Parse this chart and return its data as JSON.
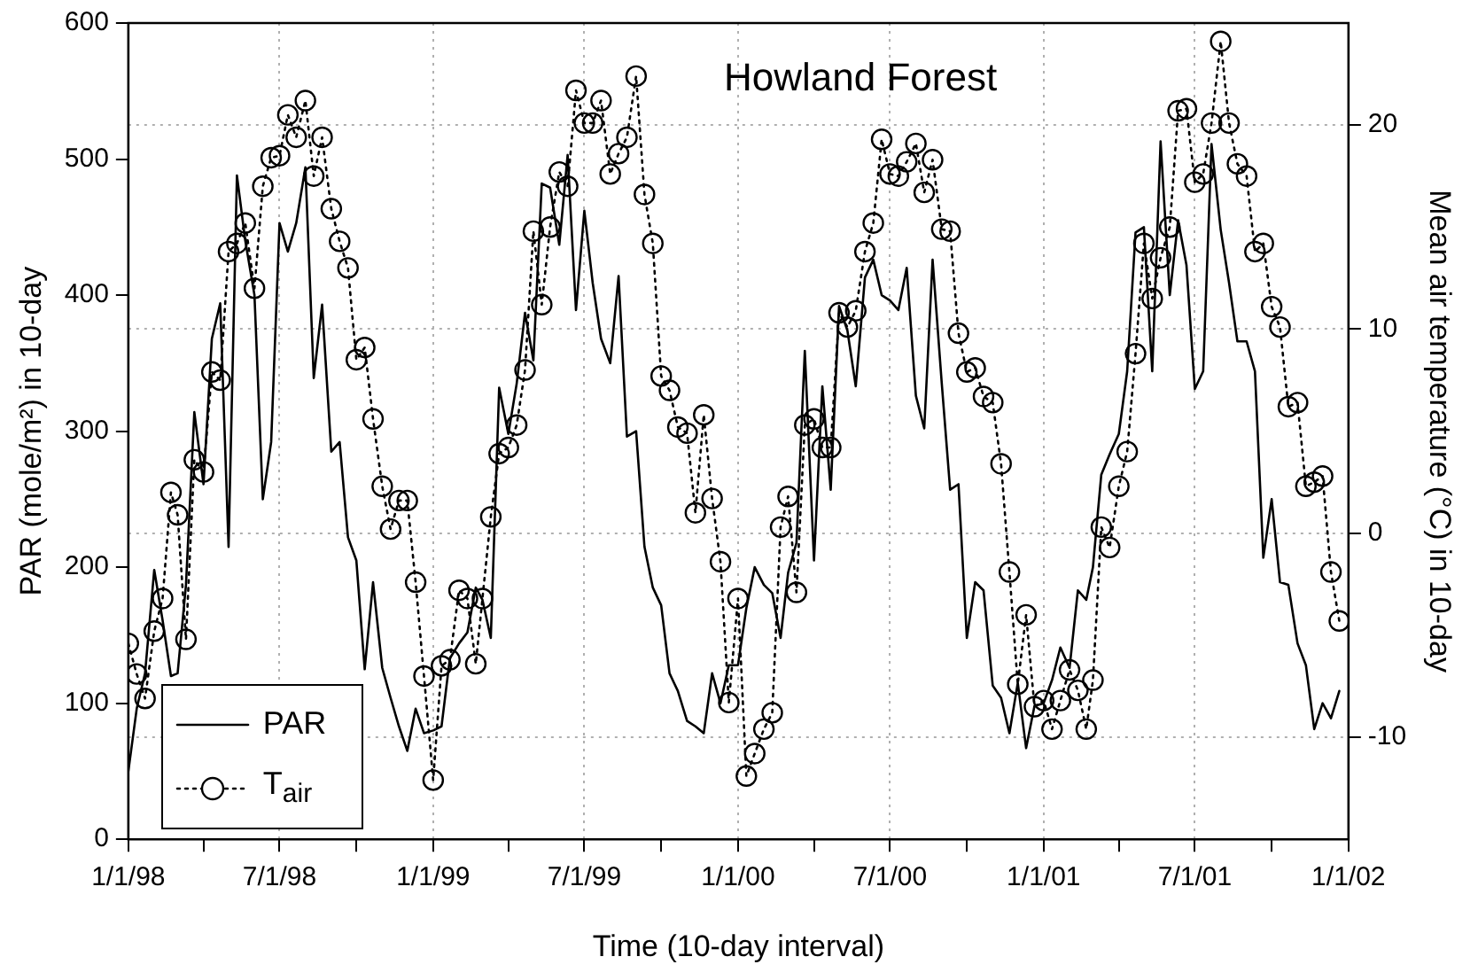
{
  "chart_data": {
    "type": "line",
    "title": "Howland Forest",
    "xlabel": "Time (10-day interval)",
    "ylabel": "PAR (mole/m²) in 10-day",
    "y2label": "Mean air temperature (°C) in 10-day",
    "x": [
      "1998-01-01",
      "1998-01-11",
      "1998-01-21",
      "1998-02-01",
      "1998-02-11",
      "1998-02-21",
      "1998-03-01",
      "1998-03-11",
      "1998-03-21",
      "1998-04-01",
      "1998-04-11",
      "1998-04-21",
      "1998-05-01",
      "1998-05-11",
      "1998-05-21",
      "1998-06-01",
      "1998-06-11",
      "1998-06-21",
      "1998-07-01",
      "1998-07-11",
      "1998-07-21",
      "1998-08-01",
      "1998-08-11",
      "1998-08-21",
      "1998-09-01",
      "1998-09-11",
      "1998-09-21",
      "1998-10-01",
      "1998-10-11",
      "1998-10-21",
      "1998-11-01",
      "1998-11-11",
      "1998-11-21",
      "1998-12-01",
      "1998-12-11",
      "1998-12-21",
      "1999-01-01",
      "1999-01-11",
      "1999-01-21",
      "1999-02-01",
      "1999-02-11",
      "1999-02-21",
      "1999-03-01",
      "1999-03-11",
      "1999-03-21",
      "1999-04-01",
      "1999-04-11",
      "1999-04-21",
      "1999-05-01",
      "1999-05-11",
      "1999-05-21",
      "1999-06-01",
      "1999-06-11",
      "1999-06-21",
      "1999-07-01",
      "1999-07-11",
      "1999-07-21",
      "1999-08-01",
      "1999-08-11",
      "1999-08-21",
      "1999-09-01",
      "1999-09-11",
      "1999-09-21",
      "1999-10-01",
      "1999-10-11",
      "1999-10-21",
      "1999-11-01",
      "1999-11-11",
      "1999-11-21",
      "1999-12-01",
      "1999-12-11",
      "1999-12-21",
      "2000-01-01",
      "2000-01-11",
      "2000-01-21",
      "2000-02-01",
      "2000-02-11",
      "2000-02-21",
      "2000-03-01",
      "2000-03-11",
      "2000-03-21",
      "2000-04-01",
      "2000-04-11",
      "2000-04-21",
      "2000-05-01",
      "2000-05-11",
      "2000-05-21",
      "2000-06-01",
      "2000-06-11",
      "2000-06-21",
      "2000-07-01",
      "2000-07-11",
      "2000-07-21",
      "2000-08-01",
      "2000-08-11",
      "2000-08-21",
      "2000-09-01",
      "2000-09-11",
      "2000-09-21",
      "2000-10-01",
      "2000-10-11",
      "2000-10-21",
      "2000-11-01",
      "2000-11-11",
      "2000-11-21",
      "2000-12-01",
      "2000-12-11",
      "2000-12-21",
      "2001-01-01",
      "2001-01-11",
      "2001-01-21",
      "2001-02-01",
      "2001-02-11",
      "2001-02-21",
      "2001-03-01",
      "2001-03-11",
      "2001-03-21",
      "2001-04-01",
      "2001-04-11",
      "2001-04-21",
      "2001-05-01",
      "2001-05-11",
      "2001-05-21",
      "2001-06-01",
      "2001-06-11",
      "2001-06-21",
      "2001-07-01",
      "2001-07-11",
      "2001-07-21",
      "2001-08-01",
      "2001-08-11",
      "2001-08-21",
      "2001-09-01",
      "2001-09-11",
      "2001-09-21",
      "2001-10-01",
      "2001-10-11",
      "2001-10-21",
      "2001-11-01",
      "2001-11-11",
      "2001-11-21",
      "2001-12-01",
      "2001-12-11",
      "2001-12-21"
    ],
    "series": [
      {
        "name": "PAR",
        "color": "#000000",
        "marker": "none",
        "line_style": "solid",
        "values": [
          50,
          96,
          122,
          198,
          161,
          120,
          122,
          187,
          314,
          261,
          368,
          394,
          215,
          488,
          440,
          400,
          250,
          292,
          453,
          432,
          453,
          494,
          339,
          393,
          285,
          292,
          222,
          205,
          125,
          189,
          126,
          104,
          83,
          65,
          96,
          78,
          80,
          83,
          133,
          144,
          152,
          185,
          176,
          148,
          332,
          298,
          335,
          387,
          352,
          482,
          479,
          437,
          503,
          389,
          462,
          409,
          368,
          350,
          414,
          296,
          300,
          215,
          185,
          172,
          122,
          109,
          87,
          83,
          78,
          122,
          100,
          128,
          128,
          170,
          200,
          187,
          181,
          148,
          196,
          218,
          359,
          205,
          333,
          257,
          392,
          374,
          333,
          413,
          426,
          400,
          396,
          389,
          420,
          326,
          302,
          426,
          335,
          257,
          261,
          148,
          189,
          183,
          113,
          104,
          78,
          115,
          67,
          98,
          100,
          117,
          141,
          126,
          183,
          176,
          200,
          268,
          283,
          298,
          344,
          446,
          450,
          344,
          513,
          400,
          455,
          422,
          331,
          344,
          511,
          448,
          409,
          366,
          366,
          344,
          207,
          250,
          189,
          187,
          144,
          128,
          81,
          100,
          89,
          109
        ]
      },
      {
        "name": "T$_{air}$",
        "color": "#000000",
        "axis": "y2",
        "marker": "circle",
        "line_style": "dotted",
        "values": [
          -5.4,
          -6.9,
          -8.1,
          -4.8,
          -3.2,
          2.0,
          0.9,
          -5.2,
          3.6,
          3.0,
          7.9,
          7.5,
          13.8,
          14.2,
          15.2,
          12.0,
          17.0,
          18.4,
          18.5,
          20.5,
          19.4,
          21.2,
          17.5,
          19.4,
          15.9,
          14.3,
          13.0,
          8.5,
          9.1,
          5.6,
          2.3,
          0.2,
          1.6,
          1.6,
          -2.4,
          -7.0,
          -12.1,
          -6.5,
          -6.2,
          -2.8,
          -3.2,
          -6.4,
          -3.2,
          0.8,
          3.9,
          4.2,
          5.3,
          8.0,
          14.8,
          11.2,
          15.0,
          17.7,
          17.0,
          21.7,
          20.1,
          20.1,
          21.2,
          17.6,
          18.6,
          19.4,
          22.4,
          16.6,
          14.2,
          7.7,
          7.0,
          5.2,
          4.9,
          1.0,
          5.8,
          1.7,
          -1.4,
          -8.3,
          -3.2,
          -11.9,
          -10.8,
          -9.6,
          -8.8,
          0.3,
          1.8,
          -2.9,
          5.3,
          5.6,
          4.2,
          4.2,
          10.8,
          10.1,
          10.9,
          13.8,
          15.2,
          19.3,
          17.6,
          17.5,
          18.2,
          19.1,
          16.7,
          18.3,
          14.9,
          14.8,
          9.8,
          7.9,
          8.1,
          6.7,
          6.4,
          3.4,
          -1.9,
          -7.4,
          -4.0,
          -8.5,
          -8.2,
          -9.6,
          -8.2,
          -6.7,
          -7.7,
          -9.6,
          -7.2,
          0.3,
          -0.7,
          2.3,
          4.0,
          8.8,
          14.2,
          11.5,
          13.5,
          15.0,
          20.7,
          20.8,
          17.2,
          17.6,
          20.1,
          24.1,
          20.1,
          18.1,
          17.5,
          13.8,
          14.2,
          11.1,
          10.1,
          6.2,
          6.4,
          2.3,
          2.5,
          2.8,
          -1.9,
          -4.3
        ]
      }
    ],
    "xlim": [
      "1998-01-01",
      "2002-01-01"
    ],
    "xticks": [
      {
        "value": "1998-01-01",
        "label": "1/1/98"
      },
      {
        "value": "1998-04-01",
        "label": null
      },
      {
        "value": "1998-07-01",
        "label": "7/1/98"
      },
      {
        "value": "1998-10-01",
        "label": null
      },
      {
        "value": "1999-01-01",
        "label": "1/1/99"
      },
      {
        "value": "1999-04-01",
        "label": null
      },
      {
        "value": "1999-07-01",
        "label": "7/1/99"
      },
      {
        "value": "1999-10-01",
        "label": null
      },
      {
        "value": "2000-01-01",
        "label": "1/1/00"
      },
      {
        "value": "2000-04-01",
        "label": null
      },
      {
        "value": "2000-07-01",
        "label": "7/1/00"
      },
      {
        "value": "2000-10-01",
        "label": null
      },
      {
        "value": "2001-01-01",
        "label": "1/1/01"
      },
      {
        "value": "2001-04-01",
        "label": null
      },
      {
        "value": "2001-07-01",
        "label": "7/1/01"
      },
      {
        "value": "2001-10-01",
        "label": null
      },
      {
        "value": "2002-01-01",
        "label": "1/1/02"
      }
    ],
    "ylim": [
      0,
      600
    ],
    "yticks": [
      0,
      100,
      200,
      300,
      400,
      500,
      600
    ],
    "y2lim": [
      -15,
      25
    ],
    "y2ticks": [
      -10,
      0,
      10,
      20
    ],
    "grid": true,
    "legend": "bottom left"
  }
}
